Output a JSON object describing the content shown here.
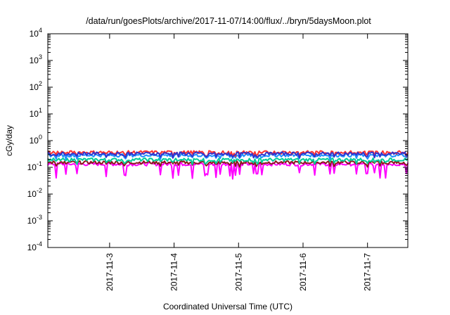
{
  "chart_data": {
    "type": "line",
    "title": "/data/run/goesPlots/archive/2017-11-07/14:00/flux/../bryn/5daysMoon.plot",
    "xlabel": "Coordinated Universal Time (UTC)",
    "ylabel": "cGy/day",
    "y_scale": "log",
    "ylim": [
      0.0001,
      10000
    ],
    "y_ticks": [
      {
        "value": 0.0001,
        "base": "10",
        "exp": "-4"
      },
      {
        "value": 0.001,
        "base": "10",
        "exp": "-3"
      },
      {
        "value": 0.01,
        "base": "10",
        "exp": "-2"
      },
      {
        "value": 0.1,
        "base": "10",
        "exp": "-1"
      },
      {
        "value": 1,
        "base": "10",
        "exp": "0"
      },
      {
        "value": 10,
        "base": "10",
        "exp": "1"
      },
      {
        "value": 100,
        "base": "10",
        "exp": "2"
      },
      {
        "value": 1000,
        "base": "10",
        "exp": "3"
      },
      {
        "value": 10000,
        "base": "10",
        "exp": "4"
      }
    ],
    "xlim": [
      "2017-11-02T01:00",
      "2017-11-07T15:00"
    ],
    "x_ticks": [
      {
        "value": "2017-11-03T00:00",
        "label": "2017-11-3"
      },
      {
        "value": "2017-11-04T00:00",
        "label": "2017-11-4"
      },
      {
        "value": "2017-11-05T00:00",
        "label": "2017-11-5"
      },
      {
        "value": "2017-11-06T00:00",
        "label": "2017-11-6"
      },
      {
        "value": "2017-11-07T00:00",
        "label": "2017-11-7"
      }
    ],
    "grid": false,
    "legend": "none",
    "series": [
      {
        "color": "#ff00ff",
        "values_note": "lowest trace with frequent dips",
        "base": 0.13,
        "dip": 0.045
      },
      {
        "color": "#8b1a1a",
        "base": 0.15
      },
      {
        "color": "#00cc99",
        "base": 0.19
      },
      {
        "color": "#1e90ff",
        "base": 0.28
      },
      {
        "color": "#ff3030",
        "base": 0.36
      },
      {
        "color": "#3333cc",
        "base": 0.32
      }
    ]
  }
}
